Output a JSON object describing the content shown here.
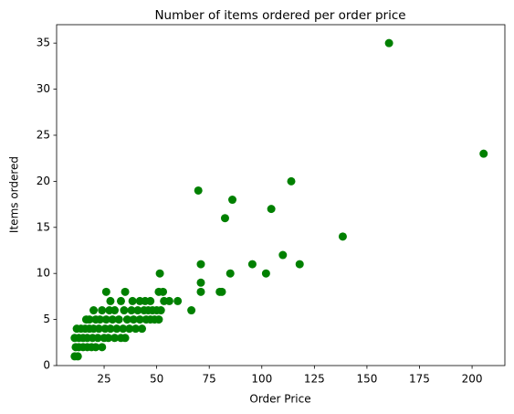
{
  "chart_data": {
    "type": "scatter",
    "title": "Number of items ordered per order price",
    "x_label": "Order Price",
    "y_label": "Items ordered",
    "color": "#008000",
    "x": [
      11,
      11.5,
      11,
      12,
      12.5,
      13,
      13,
      14,
      15,
      15,
      16,
      16.5,
      17,
      17,
      18,
      18,
      19,
      19.5,
      20,
      20,
      21,
      21,
      22,
      22.5,
      23,
      24,
      24,
      25,
      25.5,
      26,
      27,
      27.5,
      28,
      28,
      29,
      30,
      30,
      31,
      32,
      33,
      33,
      34,
      34.5,
      35,
      36,
      37,
      38,
      38.5,
      39,
      40,
      41,
      42,
      42,
      43,
      44,
      44.5,
      45,
      46,
      47,
      48,
      49,
      50,
      51,
      52,
      160.5,
      205.5,
      69.8,
      86,
      114,
      104.5,
      82.5,
      138.5,
      110,
      95.5,
      118,
      71,
      102,
      85,
      51.5,
      71,
      66.5,
      71,
      80,
      81,
      53,
      51,
      26,
      35,
      56,
      60,
      53.5,
      47
    ],
    "y": [
      1,
      2,
      3,
      4,
      1,
      2,
      3,
      4,
      2,
      3,
      4,
      5,
      2,
      3,
      4,
      5,
      2,
      3,
      6,
      4,
      5,
      2,
      3,
      4,
      5,
      2,
      6,
      3,
      4,
      5,
      3,
      6,
      7,
      4,
      5,
      3,
      6,
      4,
      5,
      7,
      3,
      4,
      6,
      3,
      5,
      4,
      6,
      7,
      5,
      4,
      6,
      5,
      7,
      4,
      6,
      7,
      5,
      6,
      5,
      6,
      5,
      6,
      5,
      6,
      35,
      23,
      19,
      18,
      20,
      17,
      16,
      14,
      12,
      11,
      11,
      11,
      10,
      10,
      10,
      9,
      6,
      8,
      8,
      8,
      8,
      8,
      8,
      8,
      7,
      7,
      7,
      7
    ],
    "xlim": [
      2.4,
      215.6
    ],
    "ylim": [
      0,
      37
    ],
    "xticks": [
      25,
      50,
      75,
      100,
      125,
      150,
      175,
      200
    ],
    "yticks": [
      0,
      5,
      10,
      15,
      20,
      25,
      30,
      35
    ]
  }
}
